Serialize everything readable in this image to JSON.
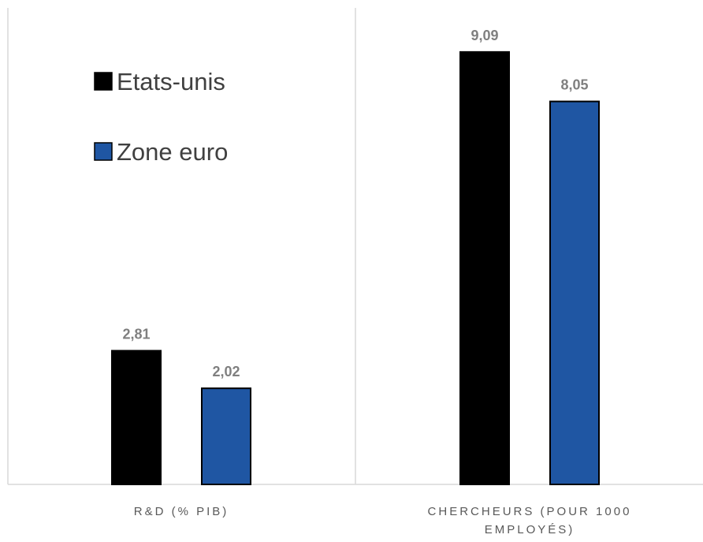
{
  "chart_data": {
    "type": "bar",
    "categories": [
      [
        "R&D (% PIB)"
      ],
      [
        "CHERCHEURS (POUR 1000",
        "EMPLOYÉS)"
      ]
    ],
    "series": [
      {
        "name": "Etats-unis",
        "values": [
          2.81,
          9.09
        ],
        "labels": [
          "2,81",
          "9,09"
        ],
        "color": "#000000"
      },
      {
        "name": "Zone euro",
        "values": [
          2.02,
          8.05
        ],
        "labels": [
          "2,02",
          "8,05"
        ],
        "color": "#1f56a3"
      }
    ],
    "legend_position": "top-left",
    "grid": false
  }
}
